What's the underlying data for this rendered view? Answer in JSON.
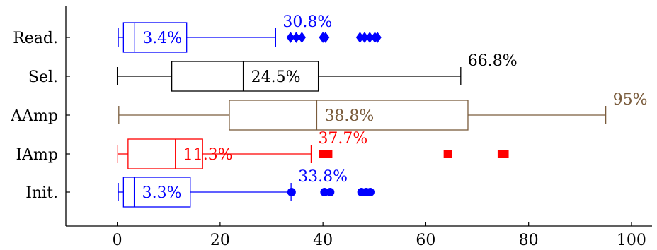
{
  "chart_data": {
    "type": "boxplot",
    "orientation": "horizontal",
    "xlim": [
      -10,
      104
    ],
    "xticks": [
      0,
      20,
      40,
      60,
      80,
      100
    ],
    "categories": [
      "Read.",
      "Sel.",
      "AAmp",
      "IAmp",
      "Init."
    ],
    "series": [
      {
        "category": "Read.",
        "color": "#0000ff",
        "min": 0.2,
        "q1": 1.2,
        "median": 3.4,
        "q3": 13.5,
        "max": 30.8,
        "median_label": "3.4%",
        "max_label": "30.8%",
        "outlier_marker": "diamond",
        "outliers": [
          33.7,
          34.8,
          35.9,
          40.0,
          40.5,
          47.2,
          48.1,
          49.1,
          50.1,
          50.6
        ]
      },
      {
        "category": "Sel.",
        "color": "#000000",
        "min": 0.0,
        "q1": 10.6,
        "median": 24.5,
        "q3": 39.1,
        "max": 66.8,
        "median_label": "24.5%",
        "max_label": "66.8%",
        "outlier_marker": "none",
        "outliers": []
      },
      {
        "category": "AAmp",
        "color": "#7a5c3c",
        "min": 0.3,
        "q1": 21.8,
        "median": 38.8,
        "q3": 68.2,
        "max": 95.0,
        "median_label": "38.8%",
        "max_label": "95%",
        "outlier_marker": "none",
        "outliers": []
      },
      {
        "category": "IAmp",
        "color": "#ff0000",
        "min": 0.1,
        "q1": 2.1,
        "median": 11.3,
        "q3": 16.6,
        "max": 37.7,
        "median_label": "11.3%",
        "max_label": "37.7%",
        "outlier_marker": "square",
        "outliers": [
          40.1,
          41.0,
          64.3,
          74.8,
          75.3
        ]
      },
      {
        "category": "Init.",
        "color": "#0000ff",
        "min": 0.2,
        "q1": 1.2,
        "median": 3.3,
        "q3": 14.2,
        "max": 33.8,
        "median_label": "3.3%",
        "max_label": "33.8%",
        "outlier_marker": "circle",
        "outliers": [
          33.9,
          40.3,
          41.4,
          47.5,
          48.4,
          49.2
        ]
      }
    ]
  }
}
